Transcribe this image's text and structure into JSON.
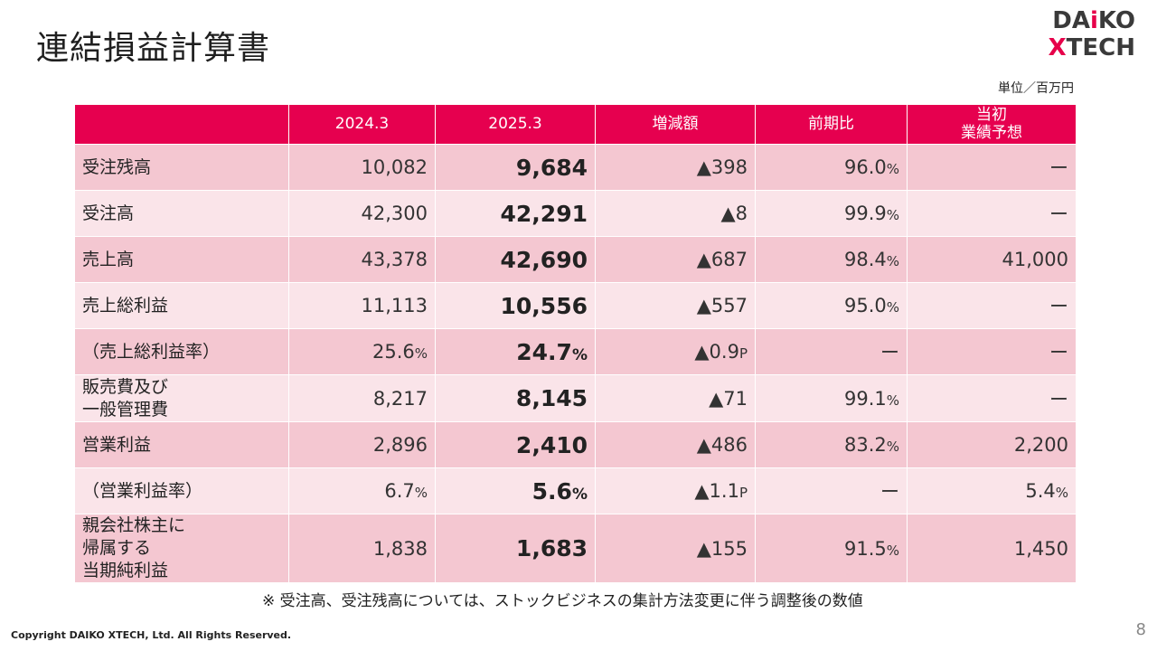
{
  "page": {
    "title": "連結損益計算書",
    "unit": "単位／百万円",
    "footnote": "※ 受注高、受注残高については、ストックビジネスの集計方法変更に伴う調整後の数値",
    "copyright": "Copyright DAIKO XTECH, Ltd. All Rights Reserved.",
    "page_number": "8"
  },
  "logo": {
    "line1_a": "DA",
    "line1_i": "i",
    "line1_b": "KO",
    "line2_x": "X",
    "line2_rest": "TECH"
  },
  "table": {
    "headers": [
      "",
      "2024.3",
      "2025.3",
      "増減額",
      "前期比",
      "当初\n業績予想"
    ],
    "header_forecast_line1": "当初",
    "header_forecast_line2": "業績予想",
    "rows": [
      {
        "label": "受注残高",
        "y2024": "10,082",
        "y2025": "9,684",
        "diff": "▲398",
        "ratio": "96.0",
        "ratio_unit": "%",
        "forecast": "ー"
      },
      {
        "label": "受注高",
        "y2024": "42,300",
        "y2025": "42,291",
        "diff": "▲8",
        "ratio": "99.9",
        "ratio_unit": "%",
        "forecast": "ー"
      },
      {
        "label": "売上高",
        "y2024": "43,378",
        "y2025": "42,690",
        "diff": "▲687",
        "ratio": "98.4",
        "ratio_unit": "%",
        "forecast": "41,000"
      },
      {
        "label": "売上総利益",
        "y2024": "11,113",
        "y2025": "10,556",
        "diff": "▲557",
        "ratio": "95.0",
        "ratio_unit": "%",
        "forecast": "ー"
      },
      {
        "label": "（売上総利益率）",
        "y2024": "25.6",
        "y2024_unit": "%",
        "y2025": "24.7",
        "y2025_unit": "%",
        "diff": "▲0.9",
        "diff_unit": "P",
        "ratio": "ー",
        "forecast": "ー"
      },
      {
        "label_line1": "販売費及び",
        "label_line2": "一般管理費",
        "y2024": "8,217",
        "y2025": "8,145",
        "diff": "▲71",
        "ratio": "99.1",
        "ratio_unit": "%",
        "forecast": "ー"
      },
      {
        "label": "営業利益",
        "y2024": "2,896",
        "y2025": "2,410",
        "diff": "▲486",
        "ratio": "83.2",
        "ratio_unit": "%",
        "forecast": "2,200"
      },
      {
        "label": "（営業利益率）",
        "y2024": "6.7",
        "y2024_unit": "%",
        "y2025": "5.6",
        "y2025_unit": "%",
        "diff": "▲1.1",
        "diff_unit": "P",
        "ratio": "ー",
        "forecast": "5.4",
        "forecast_unit": "%"
      },
      {
        "label_line1": "親会社株主に",
        "label_line2": "帰属する",
        "label_line3": "当期純利益",
        "y2024": "1,838",
        "y2025": "1,683",
        "diff": "▲155",
        "ratio": "91.5",
        "ratio_unit": "%",
        "forecast": "1,450"
      }
    ]
  },
  "colors": {
    "header_bg": "#e6004f",
    "row_dark": "#f4c7d1",
    "row_light": "#fae4e9",
    "brand_accent": "#e6004a"
  }
}
